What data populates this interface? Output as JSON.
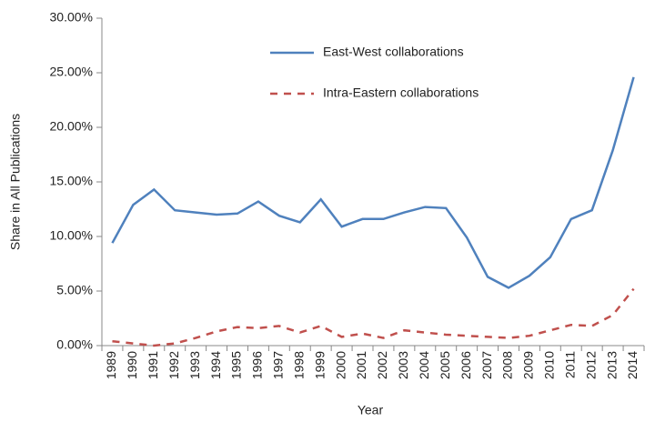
{
  "chart_data": {
    "type": "line",
    "x_label": "Year",
    "y_label": "Share in All Publications",
    "categories": [
      "1989",
      "1990",
      "1991",
      "1992",
      "1993",
      "1994",
      "1995",
      "1996",
      "1997",
      "1998",
      "1999",
      "2000",
      "2001",
      "2002",
      "2003",
      "2004",
      "2005",
      "2006",
      "2007",
      "2008",
      "2009",
      "2010",
      "2011",
      "2012",
      "2013",
      "2014"
    ],
    "series": [
      {
        "name": "East-West collaborations",
        "color": "#4f81bd",
        "dash": "solid",
        "values": [
          9.4,
          12.9,
          14.3,
          12.4,
          12.2,
          12.0,
          12.1,
          13.2,
          11.9,
          11.3,
          13.4,
          10.9,
          11.6,
          11.6,
          12.2,
          12.7,
          12.6,
          9.9,
          6.3,
          5.3,
          6.4,
          8.1,
          11.6,
          12.4,
          17.9,
          24.6
        ]
      },
      {
        "name": "Intra-Eastern collaborations",
        "color": "#c0504d",
        "dash": "dashed",
        "values": [
          0.4,
          0.2,
          0.0,
          0.2,
          0.7,
          1.3,
          1.7,
          1.6,
          1.8,
          1.2,
          1.8,
          0.8,
          1.1,
          0.7,
          1.4,
          1.2,
          1.0,
          0.9,
          0.8,
          0.7,
          0.9,
          1.4,
          1.9,
          1.8,
          2.8,
          5.2
        ]
      }
    ],
    "ylim": [
      0,
      30
    ],
    "yticks": [
      {
        "value": 0,
        "label": "0.00%"
      },
      {
        "value": 5,
        "label": "5.00%"
      },
      {
        "value": 10,
        "label": "10.00%"
      },
      {
        "value": 15,
        "label": "15.00%"
      },
      {
        "value": 20,
        "label": "20.00%"
      },
      {
        "value": 25,
        "label": "25.00%"
      },
      {
        "value": 30,
        "label": "30.00%"
      }
    ],
    "grid": false
  }
}
